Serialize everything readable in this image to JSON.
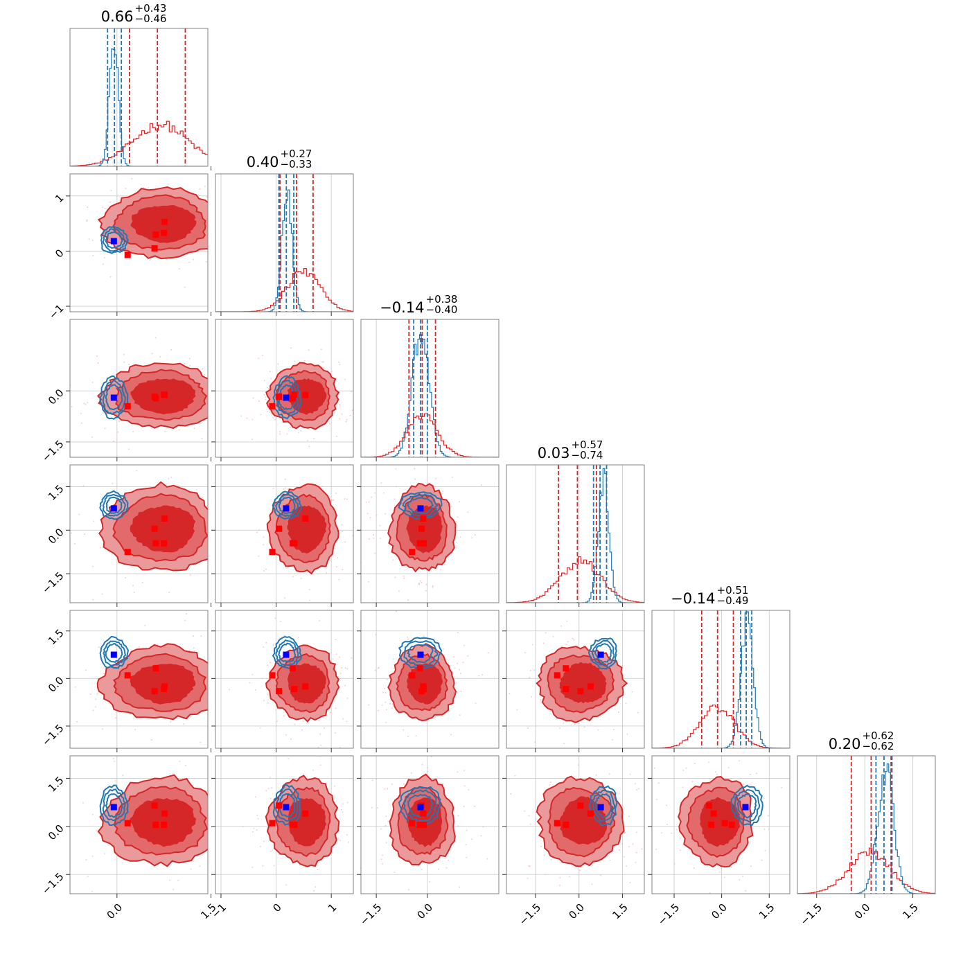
{
  "chart_data": {
    "type": "corner",
    "n_params": 6,
    "grid": true,
    "colors": {
      "red": "#d62728",
      "red_light": "#eb9a9b",
      "red_dark": "#d62728",
      "blue": "#1f77b4",
      "truth_red": "#ff0000",
      "truth_blue": "#0000ff"
    },
    "axis_ranges": [
      [
        -0.75,
        1.45
      ],
      [
        -1.1,
        1.4
      ],
      [
        -1.95,
        2.1
      ],
      [
        -2.5,
        2.25
      ],
      [
        -2.2,
        2.15
      ],
      [
        -2.1,
        2.2
      ]
    ],
    "tick_labels": [
      [
        "0.0",
        "1.5"
      ],
      [
        "-1",
        "0",
        "1"
      ],
      [
        "-1.5",
        "0.0"
      ],
      [
        "-1.5",
        "0.0",
        "1.5"
      ],
      [
        "-1.5",
        "0.0",
        "1.5"
      ],
      [
        "-1.5",
        "0.0",
        "1.5"
      ]
    ],
    "tick_values": [
      [
        0.0,
        1.5
      ],
      [
        -1,
        0,
        1
      ],
      [
        -1.5,
        0.0
      ],
      [
        -1.5,
        0.0,
        1.5
      ],
      [
        -1.5,
        0.0,
        1.5
      ],
      [
        -1.5,
        0.0,
        1.5
      ]
    ],
    "titles": [
      {
        "value": "0.66",
        "plus": "+0.43",
        "minus": "−0.46"
      },
      {
        "value": "0.40",
        "plus": "+0.27",
        "minus": "−0.33"
      },
      {
        "value": "−0.14",
        "plus": "+0.38",
        "minus": "−0.40"
      },
      {
        "value": "0.03",
        "plus": "+0.57",
        "minus": "−0.74"
      },
      {
        "value": "−0.14",
        "plus": "+0.51",
        "minus": "−0.49"
      },
      {
        "value": "0.20",
        "plus": "+0.62",
        "minus": "−0.62"
      }
    ],
    "red_posterior": {
      "means": [
        0.7,
        0.5,
        -0.15,
        0.05,
        -0.15,
        0.15
      ],
      "sigmas": [
        0.45,
        0.3,
        0.45,
        0.7,
        0.55,
        0.65
      ],
      "quantiles": [
        [
          0.2,
          1.09
        ],
        [
          0.07,
          0.67
        ],
        [
          -0.54,
          0.24
        ],
        [
          -0.71,
          0.6
        ],
        [
          -0.63,
          0.37
        ],
        [
          -0.42,
          0.82
        ]
      ]
    },
    "blue_posterior": {
      "means": [
        -0.05,
        0.2,
        -0.2,
        0.85,
        0.8,
        0.65
      ],
      "sigmas": [
        0.07,
        0.09,
        0.25,
        0.18,
        0.2,
        0.25
      ],
      "quantiles": [
        [
          -0.15,
          0.07
        ],
        [
          0.05,
          0.32
        ],
        [
          -0.4,
          0.0
        ],
        [
          0.5,
          0.95
        ],
        [
          0.6,
          0.95
        ],
        [
          0.35,
          0.85
        ]
      ]
    },
    "truth_blue": [
      -0.05,
      0.18,
      -0.2,
      0.75,
      0.75,
      0.6
    ],
    "truth_red_points": [
      [
        0.76,
        0.53,
        -0.12,
        0.4,
        -0.25,
        0.4
      ],
      [
        0.75,
        0.33,
        -0.11,
        -0.45,
        -0.33,
        0.05
      ],
      [
        0.62,
        0.3,
        -0.22,
        -0.45,
        0.32,
        0.05
      ],
      [
        0.17,
        -0.07,
        -0.45,
        -0.75,
        0.1,
        0.1
      ],
      [
        0.6,
        0.05,
        -0.17,
        0.05,
        -0.4,
        0.65
      ]
    ]
  }
}
